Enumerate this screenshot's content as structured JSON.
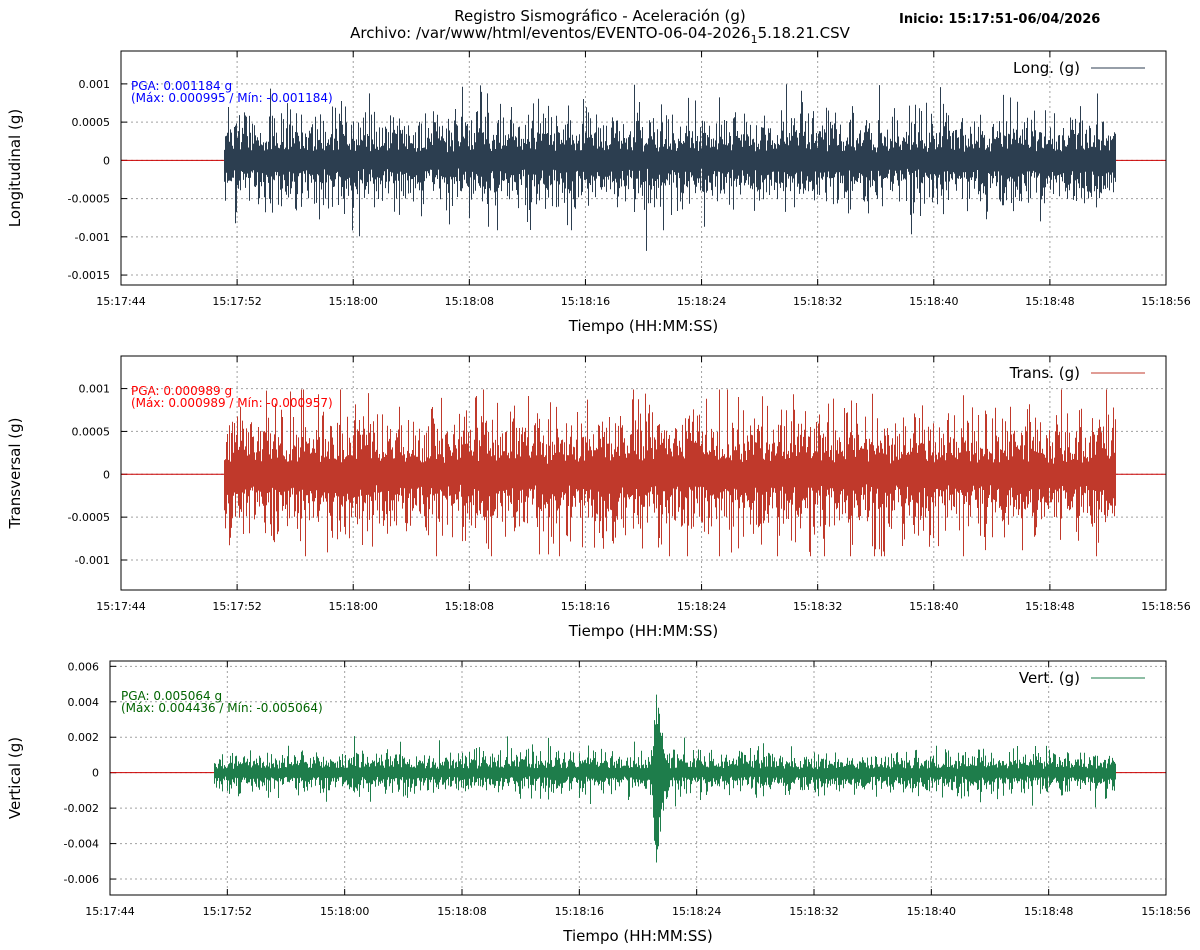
{
  "header": {
    "title": "Registro Sismográfico - Aceleración (g)",
    "archivo_prefix": "Archivo: /var/www/html/eventos/EVENTO-06-04-2026",
    "archivo_sub": "1",
    "archivo_suffix": "5.18.21.CSV",
    "inicio": "Inicio: 15:17:51-06/04/2026"
  },
  "chart_data": [
    {
      "type": "line",
      "ylabel": "Longitudinal (g)",
      "xlabel": "Tiempo (HH:MM:SS)",
      "legend": "Long. (g)",
      "legend_position": "top-right",
      "grid": true,
      "color": "#2c3e50",
      "zero_line_color": "#cc0000",
      "x_ticks": [
        "15:17:44",
        "15:17:52",
        "15:18:00",
        "15:18:08",
        "15:18:16",
        "15:18:24",
        "15:18:32",
        "15:18:40",
        "15:18:48",
        "15:18:56"
      ],
      "y_ticks": [
        "0.001",
        "0.0005",
        "0",
        "-0.0005",
        "-0.001",
        "-0.0015"
      ],
      "y_tick_values": [
        0.001,
        0.0005,
        0,
        -0.0005,
        -0.001,
        -0.0015
      ],
      "xlim_seconds": [
        0,
        72
      ],
      "ylim": [
        -0.00163,
        0.00143
      ],
      "signal_start_s": 7.1,
      "signal_end_s": 68.5,
      "amplitude_envelope": 0.0003,
      "peak": {
        "time_s": 36.2,
        "value": -0.001184
      },
      "max": 0.000995,
      "min": -0.001184,
      "pga_text": "PGA: 0.001184 g",
      "maxmin_text": "(Máx: 0.000995 / Mín: -0.001184)",
      "annotation_color": "#0000ff"
    },
    {
      "type": "line",
      "ylabel": "Transversal (g)",
      "xlabel": "Tiempo (HH:MM:SS)",
      "legend": "Trans. (g)",
      "legend_position": "top-right",
      "grid": true,
      "color": "#c0392b",
      "zero_line_color": "#cc0000",
      "x_ticks": [
        "15:17:44",
        "15:17:52",
        "15:18:00",
        "15:18:08",
        "15:18:16",
        "15:18:24",
        "15:18:32",
        "15:18:40",
        "15:18:48",
        "15:18:56"
      ],
      "y_ticks": [
        "0.001",
        "0.0005",
        "0",
        "-0.0005",
        "-0.001"
      ],
      "y_tick_values": [
        0.001,
        0.0005,
        0,
        -0.0005,
        -0.001
      ],
      "xlim_seconds": [
        0,
        72
      ],
      "ylim": [
        -0.00135,
        0.00138
      ],
      "signal_start_s": 7.1,
      "signal_end_s": 68.5,
      "amplitude_envelope": 0.00035,
      "peak": {
        "time_s": 35.3,
        "value": 0.000989
      },
      "max": 0.000989,
      "min": -0.000957,
      "pga_text": "PGA: 0.000989 g",
      "maxmin_text": "(Máx: 0.000989 / Mín: -0.000957)",
      "annotation_color": "#ff0000"
    },
    {
      "type": "line",
      "ylabel": "Vertical (g)",
      "xlabel": "Tiempo (HH:MM:SS)",
      "legend": "Vert. (g)",
      "legend_position": "top-right",
      "grid": true,
      "color": "#1e7d4b",
      "zero_line_color": "#cc0000",
      "x_ticks": [
        "15:17:44",
        "15:17:52",
        "15:18:00",
        "15:18:08",
        "15:18:16",
        "15:18:24",
        "15:18:32",
        "15:18:40",
        "15:18:48",
        "15:18:56"
      ],
      "y_ticks": [
        "0.006",
        "0.004",
        "0.002",
        "0",
        "-0.002",
        "-0.004",
        "-0.006"
      ],
      "y_tick_values": [
        0.006,
        0.004,
        0.002,
        0,
        -0.002,
        -0.004,
        -0.006
      ],
      "xlim_seconds": [
        0,
        72
      ],
      "ylim": [
        -0.0069,
        0.0063
      ],
      "signal_start_s": 7.1,
      "signal_end_s": 68.5,
      "amplitude_envelope": 0.00055,
      "peak": {
        "time_s": 37.2,
        "value": -0.005064
      },
      "burst": {
        "time_s": 37.2,
        "max": 0.004436,
        "min": -0.005064
      },
      "max": 0.004436,
      "min": -0.005064,
      "pga_text": "PGA: 0.005064 g",
      "maxmin_text": "(Máx: 0.004436 / Mín: -0.005064)",
      "annotation_color": "#006400"
    }
  ]
}
